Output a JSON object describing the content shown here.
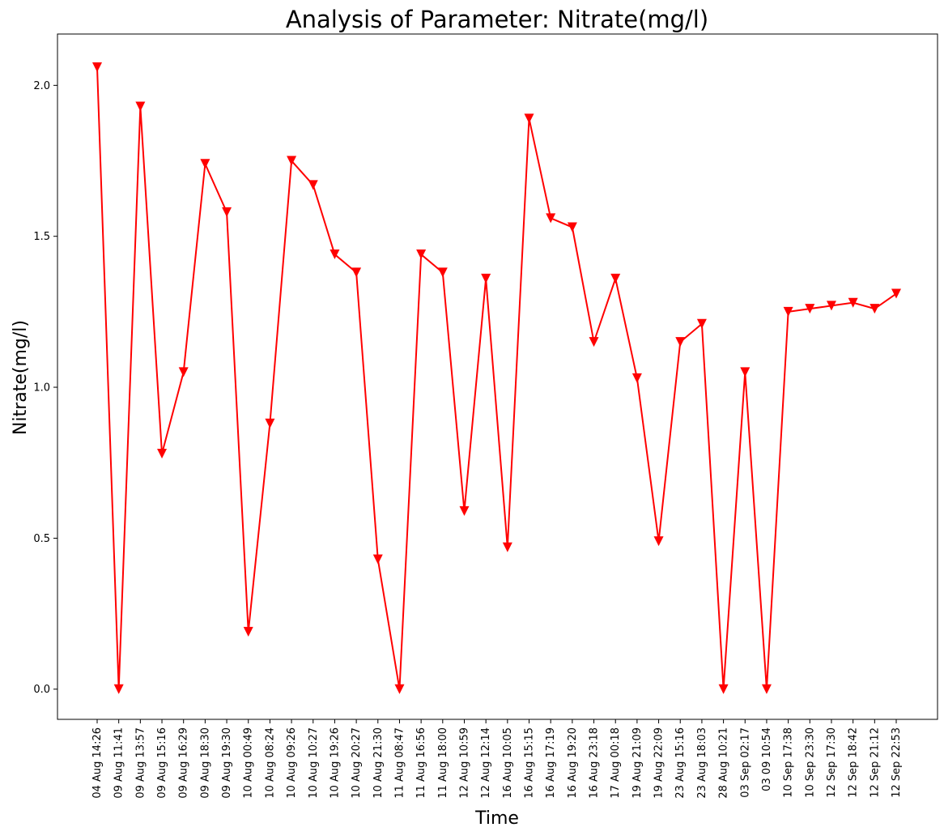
{
  "chart_data": {
    "type": "line",
    "title": "Analysis of Parameter: Nitrate(mg/l)",
    "xlabel": "Time",
    "ylabel": "Nitrate(mg/l)",
    "ylim": [
      -0.1,
      2.17
    ],
    "yticks": [
      0.0,
      0.5,
      1.0,
      1.5,
      2.0
    ],
    "ytick_labels": [
      "0.0",
      "0.5",
      "1.0",
      "1.5",
      "2.0"
    ],
    "grid": false,
    "line_color": "#ff0000",
    "marker": "triangle-down",
    "categories": [
      "04 Aug 14:26",
      "09 Aug 11:41",
      "09 Aug 13:57",
      "09 Aug 15:16",
      "09 Aug 16:29",
      "09 Aug 18:30",
      "09 Aug 19:30",
      "10 Aug 00:49",
      "10 Aug 08:24",
      "10 Aug 09:26",
      "10 Aug 10:27",
      "10 Aug 19:26",
      "10 Aug 20:27",
      "10 Aug 21:30",
      "11 Aug 08:47",
      "11 Aug 16:56",
      "11 Aug 18:00",
      "12 Aug 10:59",
      "12 Aug 12:14",
      "16 Aug 10:05",
      "16 Aug 15:15",
      "16 Aug 17:19",
      "16 Aug 19:20",
      "16 Aug 23:18",
      "17 Aug 00:18",
      "19 Aug 21:09",
      "19 Aug 22:09",
      "23 Aug 15:16",
      "23 Aug 18:03",
      "28 Aug 10:21",
      "03 Sep 02:17",
      "03 09 10:54",
      "10 Sep 17:38",
      "10 Sep 23:30",
      "12 Sep 17:30",
      "12 Sep 18:42",
      "12 Sep 21:12",
      "12 Sep 22:53"
    ],
    "series": [
      {
        "values": [
          2.06,
          0.0,
          1.93,
          0.78,
          1.05,
          1.74,
          1.58,
          0.19,
          0.88,
          1.75,
          1.67,
          1.44,
          1.38,
          0.43,
          0.0,
          1.44,
          1.38,
          0.59,
          1.36,
          0.47,
          1.89,
          1.56,
          1.53,
          1.15,
          1.36,
          1.03,
          0.49,
          1.15,
          1.21,
          0.0,
          1.05,
          0.0,
          1.25,
          1.26,
          1.27,
          1.28,
          1.26,
          1.31
        ]
      }
    ]
  }
}
